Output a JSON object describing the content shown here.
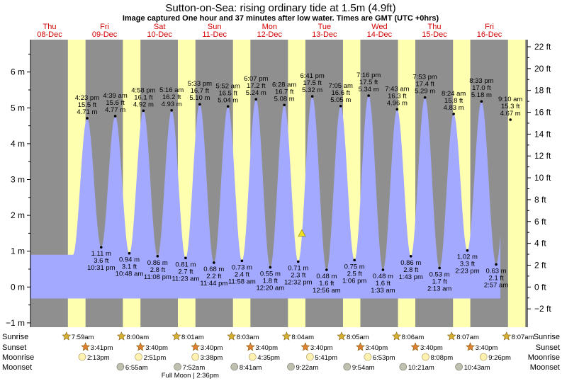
{
  "title": "Sutton-on-Sea: rising  ordinary tide at 1.5m (4.9ft)",
  "subtitle": "Image captured One hour and 37 minutes after low water. Times are GMT (UTC +0hrs)",
  "colors": {
    "night": "#8f8f8f",
    "day": "#ffffb0",
    "tide": "#a3a9ff",
    "day_label": "#d40000",
    "sun": "#d8b030",
    "sunset": "#e08030",
    "moon": "#fff2b0",
    "moonset": "#c0c0b0"
  },
  "days": [
    {
      "day": "Thu",
      "date": "08-Dec"
    },
    {
      "day": "Fri",
      "date": "09-Dec"
    },
    {
      "day": "Sat",
      "date": "10-Dec"
    },
    {
      "day": "Sun",
      "date": "11-Dec"
    },
    {
      "day": "Mon",
      "date": "12-Dec"
    },
    {
      "day": "Tue",
      "date": "13-Dec"
    },
    {
      "day": "Wed",
      "date": "14-Dec"
    },
    {
      "day": "Thu",
      "date": "15-Dec"
    },
    {
      "day": "Fri",
      "date": "16-Dec"
    }
  ],
  "chart_data": {
    "type": "area",
    "title": "Sutton-on-Sea: rising  ordinary tide at 1.5m (4.9ft)",
    "y_left_unit": "m",
    "y_right_unit": "ft",
    "ylim_m": [
      -1.2,
      6.9
    ],
    "y_left_ticks": [
      "−1 m",
      "0 m",
      "1 m",
      "2 m",
      "3 m",
      "4 m",
      "5 m",
      "6 m"
    ],
    "y_right_ticks": [
      "−2 ft",
      "0 ft",
      "2 ft",
      "4 ft",
      "6 ft",
      "8 ft",
      "10 ft",
      "12 ft",
      "14 ft",
      "16 ft",
      "18 ft",
      "20 ft",
      "22 ft"
    ],
    "x_unit": "hours from 08-Dec 00:00 GMT",
    "xlim_hours": [
      0,
      192
    ],
    "current_level_m": 1.5,
    "current_time": "12-Dec 14:09",
    "tides": [
      {
        "type": "high",
        "time": "4:23 pm",
        "ft": "15.5 ft",
        "m": "4.71 m",
        "t": 16.38,
        "h": 4.71,
        "label_above": true
      },
      {
        "type": "low",
        "time": "10:31 pm",
        "ft": "3.6 ft",
        "m": "1.11 m",
        "t": 22.52,
        "h": 1.11,
        "label_above": false
      },
      {
        "type": "high",
        "time": "4:39 am",
        "ft": "15.6 ft",
        "m": "4.77 m",
        "t": 28.65,
        "h": 4.77,
        "label_above": true
      },
      {
        "type": "low",
        "time": "10:48 am",
        "ft": "3.1 ft",
        "m": "0.94 m",
        "t": 34.8,
        "h": 0.94,
        "label_above": false
      },
      {
        "type": "high",
        "time": "4:58 pm",
        "ft": "16.1 ft",
        "m": "4.92 m",
        "t": 40.97,
        "h": 4.92,
        "label_above": true
      },
      {
        "type": "low",
        "time": "11:08 pm",
        "ft": "2.8 ft",
        "m": "0.86 m",
        "t": 47.13,
        "h": 0.86,
        "label_above": false
      },
      {
        "type": "high",
        "time": "5:16 am",
        "ft": "16.2 ft",
        "m": "4.93 m",
        "t": 53.27,
        "h": 4.93,
        "label_above": true
      },
      {
        "type": "low",
        "time": "11:23 am",
        "ft": "2.7 ft",
        "m": "0.81 m",
        "t": 59.38,
        "h": 0.81,
        "label_above": false
      },
      {
        "type": "high",
        "time": "5:33 pm",
        "ft": "16.7 ft",
        "m": "5.10 m",
        "t": 65.55,
        "h": 5.1,
        "label_above": true
      },
      {
        "type": "low",
        "time": "11:44 pm",
        "ft": "2.2 ft",
        "m": "0.68 m",
        "t": 71.73,
        "h": 0.68,
        "label_above": false
      },
      {
        "type": "high",
        "time": "5:52 am",
        "ft": "16.5 ft",
        "m": "5.04 m",
        "t": 77.87,
        "h": 5.04,
        "label_above": true
      },
      {
        "type": "low",
        "time": "11:58 am",
        "ft": "2.4 ft",
        "m": "0.73 m",
        "t": 83.97,
        "h": 0.73,
        "label_above": false
      },
      {
        "type": "high",
        "time": "6:07 pm",
        "ft": "17.2 ft",
        "m": "5.24 m",
        "t": 90.12,
        "h": 5.24,
        "label_above": true
      },
      {
        "type": "low",
        "time": "12:20 am",
        "ft": "1.8 ft",
        "m": "0.55 m",
        "t": 96.33,
        "h": 0.55,
        "label_above": false
      },
      {
        "type": "high",
        "time": "6:28 am",
        "ft": "16.7 ft",
        "m": "5.08 m",
        "t": 102.47,
        "h": 5.08,
        "label_above": true
      },
      {
        "type": "low",
        "time": "12:32 pm",
        "ft": "2.3 ft",
        "m": "0.71 m",
        "t": 108.53,
        "h": 0.71,
        "label_above": false
      },
      {
        "type": "high",
        "time": "6:41 pm",
        "ft": "17.5 ft",
        "m": "5.32 m",
        "t": 114.68,
        "h": 5.32,
        "label_above": true
      },
      {
        "type": "low",
        "time": "12:56 am",
        "ft": "1.6 ft",
        "m": "0.48 m",
        "t": 120.93,
        "h": 0.48,
        "label_above": false
      },
      {
        "type": "high",
        "time": "7:05 am",
        "ft": "16.6 ft",
        "m": "5.05 m",
        "t": 127.08,
        "h": 5.05,
        "label_above": true
      },
      {
        "type": "low",
        "time": "1:06 pm",
        "ft": "2.5 ft",
        "m": "0.75 m",
        "t": 133.1,
        "h": 0.75,
        "label_above": false
      },
      {
        "type": "high",
        "time": "7:16 pm",
        "ft": "17.5 ft",
        "m": "5.34 m",
        "t": 139.27,
        "h": 5.34,
        "label_above": true
      },
      {
        "type": "low",
        "time": "1:33 am",
        "ft": "1.6 ft",
        "m": "0.48 m",
        "t": 145.55,
        "h": 0.48,
        "label_above": false
      },
      {
        "type": "high",
        "time": "7:43 am",
        "ft": "16.3 ft",
        "m": "4.96 m",
        "t": 151.72,
        "h": 4.96,
        "label_above": true
      },
      {
        "type": "low",
        "time": "1:43 pm",
        "ft": "2.8 ft",
        "m": "0.86 m",
        "t": 157.72,
        "h": 0.86,
        "label_above": false
      },
      {
        "type": "high",
        "time": "7:53 pm",
        "ft": "17.4 ft",
        "m": "5.29 m",
        "t": 163.88,
        "h": 5.29,
        "label_above": true
      },
      {
        "type": "low",
        "time": "2:13 am",
        "ft": "1.7 ft",
        "m": "0.53 m",
        "t": 170.22,
        "h": 0.53,
        "label_above": false
      },
      {
        "type": "high",
        "time": "8:24 am",
        "ft": "15.8 ft",
        "m": "4.83 m",
        "t": 176.4,
        "h": 4.83,
        "label_above": true
      },
      {
        "type": "low",
        "time": "2:23 pm",
        "ft": "3.3 ft",
        "m": "1.02 m",
        "t": 182.38,
        "h": 1.02,
        "label_above": false
      },
      {
        "type": "high",
        "time": "8:33 pm",
        "ft": "17.0 ft",
        "m": "5.18 m",
        "t": 188.55,
        "h": 5.18,
        "label_above": true
      },
      {
        "type": "low",
        "time": "2:57 am",
        "ft": "2.1 ft",
        "m": "0.63 m",
        "t": 194.95,
        "h": 0.63,
        "label_above": false
      },
      {
        "type": "high",
        "time": "9:10 am",
        "ft": "15.3 ft",
        "m": "4.67 m",
        "t": 201.17,
        "h": 4.67,
        "label_above": true
      }
    ],
    "daylight": [
      {
        "rise": 7.98,
        "set": 15.68
      },
      {
        "rise": 31.98,
        "set": 39.67
      },
      {
        "rise": 56.0,
        "set": 63.67
      },
      {
        "rise": 80.05,
        "set": 87.67
      },
      {
        "rise": 104.07,
        "set": 111.67
      },
      {
        "rise": 128.08,
        "set": 135.67
      },
      {
        "rise": 152.1,
        "set": 159.67
      },
      {
        "rise": 176.12,
        "set": 183.67
      },
      {
        "rise": 200.12,
        "set": 207.67
      }
    ]
  },
  "rows": {
    "labels": {
      "sunrise": "Sunrise",
      "sunset": "Sunset",
      "moonrise": "Moonrise",
      "moonset": "Moonset"
    },
    "sunrise": [
      {
        "t": 7.98,
        "label": "7:59am"
      },
      {
        "t": 32.0,
        "label": "8:00am"
      },
      {
        "t": 56.02,
        "label": "8:01am"
      },
      {
        "t": 80.05,
        "label": "8:03am"
      },
      {
        "t": 104.07,
        "label": "8:04am"
      },
      {
        "t": 128.08,
        "label": "8:05am"
      },
      {
        "t": 152.1,
        "label": "8:06am"
      },
      {
        "t": 176.12,
        "label": "8:07am"
      },
      {
        "t": 200.12,
        "label": "8:07am"
      }
    ],
    "sunset": [
      {
        "t": 15.68,
        "label": "3:41pm"
      },
      {
        "t": 39.67,
        "label": "3:40pm"
      },
      {
        "t": 63.67,
        "label": "3:40pm"
      },
      {
        "t": 87.67,
        "label": "3:40pm"
      },
      {
        "t": 111.67,
        "label": "3:40pm"
      },
      {
        "t": 135.67,
        "label": "3:40pm"
      },
      {
        "t": 159.67,
        "label": "3:40pm"
      },
      {
        "t": 183.67,
        "label": "3:40pm"
      }
    ],
    "moonrise": [
      {
        "t": 14.22,
        "label": "2:13pm"
      },
      {
        "t": 38.85,
        "label": "2:51pm"
      },
      {
        "t": 63.63,
        "label": "3:38pm"
      },
      {
        "t": 88.58,
        "label": "4:35pm"
      },
      {
        "t": 113.68,
        "label": "5:41pm"
      },
      {
        "t": 138.88,
        "label": "6:53pm"
      },
      {
        "t": 164.13,
        "label": "8:08pm"
      },
      {
        "t": 189.43,
        "label": "9:26pm"
      }
    ],
    "moonset": [
      {
        "t": 30.92,
        "label": "6:55am"
      },
      {
        "t": 55.87,
        "label": "7:52am"
      },
      {
        "t": 80.68,
        "label": "8:41am"
      },
      {
        "t": 105.37,
        "label": "9:22am"
      },
      {
        "t": 129.9,
        "label": "9:54am"
      },
      {
        "t": 154.35,
        "label": "10:21am"
      },
      {
        "t": 178.72,
        "label": "10:43am"
      }
    ],
    "full_moon": {
      "t": 62.6,
      "label": "Full Moon | 2:36pm"
    }
  }
}
